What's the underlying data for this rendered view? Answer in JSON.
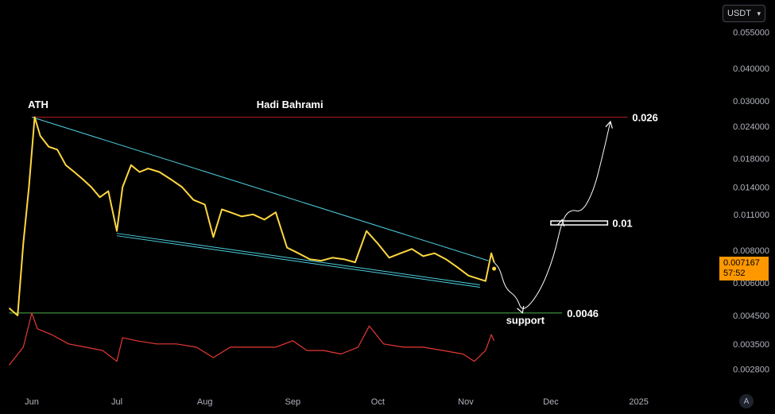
{
  "toolbar": {
    "currency": "USDT"
  },
  "price_tag": {
    "price": "0.007167",
    "countdown": "57:52"
  },
  "auto_button": {
    "label": "A"
  },
  "chart_data": {
    "type": "line",
    "yscale": "log",
    "y_ticks": [
      "0.055000",
      "0.040000",
      "0.030000",
      "0.024000",
      "0.018000",
      "0.014000",
      "0.011000",
      "0.008000",
      "0.006000",
      "0.004500",
      "0.003500",
      "0.002800"
    ],
    "x_ticks": [
      "Jun",
      "Jul",
      "Aug",
      "Sep",
      "Oct",
      "Nov",
      "Dec",
      "2025"
    ],
    "colors": {
      "price": "#ffd740",
      "indicator": "#e53935",
      "ath_line": "#b71c1c",
      "support_line": "#4caf50",
      "wedge": "#4dd0e1",
      "projection": "#ffffff",
      "price_tag": "#ff9800"
    },
    "series": [
      {
        "values_kind": "price",
        "x": [
          "May 24",
          "May 27",
          "May 29",
          "May 31",
          "Jun 2",
          "Jun 4",
          "Jun 7",
          "Jun 10",
          "Jun 13",
          "Jun 16",
          "Jun 19",
          "Jun 22",
          "Jun 25",
          "Jun 28",
          "Jul 1",
          "Jul 3",
          "Jul 6",
          "Jul 9",
          "Jul 12",
          "Jul 16",
          "Jul 20",
          "Jul 24",
          "Jul 28",
          "Aug 1",
          "Aug 4",
          "Aug 7",
          "Aug 10",
          "Aug 14",
          "Aug 18",
          "Aug 22",
          "Aug 26",
          "Aug 30",
          "Sep 3",
          "Sep 7",
          "Sep 11",
          "Sep 15",
          "Sep 19",
          "Sep 23",
          "Sep 27",
          "Oct 1",
          "Oct 5",
          "Oct 9",
          "Oct 13",
          "Oct 17",
          "Oct 21",
          "Oct 25",
          "Oct 29",
          "Nov 2",
          "Nov 6",
          "Nov 8",
          "Nov 10",
          "Nov 11"
        ],
        "y": [
          0.0048,
          0.0045,
          0.0085,
          0.014,
          0.026,
          0.022,
          0.02,
          0.0195,
          0.017,
          0.016,
          0.015,
          0.014,
          0.0128,
          0.0135,
          0.0095,
          0.014,
          0.017,
          0.016,
          0.0165,
          0.016,
          0.015,
          0.014,
          0.0125,
          0.012,
          0.009,
          0.0115,
          0.0112,
          0.0108,
          0.011,
          0.0105,
          0.0112,
          0.0082,
          0.0078,
          0.0074,
          0.0073,
          0.0075,
          0.0074,
          0.0072,
          0.0095,
          0.0085,
          0.0075,
          0.0078,
          0.0081,
          0.0076,
          0.0078,
          0.0074,
          0.0069,
          0.0064,
          0.0062,
          0.0061,
          0.0078,
          0.0072
        ]
      },
      {
        "values_kind": "indicator",
        "x": [
          "May 24",
          "May 29",
          "Jun 1",
          "Jun 3",
          "Jun 8",
          "Jun 14",
          "Jun 20",
          "Jun 26",
          "Jul 1",
          "Jul 3",
          "Jul 8",
          "Jul 15",
          "Jul 22",
          "Jul 29",
          "Aug 4",
          "Aug 10",
          "Aug 18",
          "Aug 26",
          "Sep 1",
          "Sep 6",
          "Sep 12",
          "Sep 18",
          "Sep 24",
          "Sep 28",
          "Oct 3",
          "Oct 10",
          "Oct 17",
          "Oct 24",
          "Oct 31",
          "Nov 4",
          "Nov 8",
          "Nov 10",
          "Nov 11"
        ],
        "y": [
          0.0029,
          0.0034,
          0.0046,
          0.004,
          0.0038,
          0.0035,
          0.0034,
          0.0033,
          0.003,
          0.0037,
          0.0036,
          0.0035,
          0.0035,
          0.0034,
          0.0031,
          0.0034,
          0.0034,
          0.0034,
          0.0036,
          0.0033,
          0.0033,
          0.0032,
          0.0034,
          0.0041,
          0.0035,
          0.0034,
          0.0034,
          0.0033,
          0.0032,
          0.003,
          0.0033,
          0.0038,
          0.0036
        ]
      }
    ],
    "levels": [
      {
        "label": "0.026",
        "value": 0.026,
        "x_from": "Jun 1",
        "x_to": "Dec 28",
        "color": "#b71c1c"
      },
      {
        "label": "0.01",
        "value": 0.0102,
        "x_from": "Dec 1",
        "x_to": "Dec 21",
        "color": "#ffffff"
      },
      {
        "label": "0.0046",
        "value": 0.0046,
        "x_from": "May 24",
        "x_to": "Dec 5",
        "color": "#4caf50"
      }
    ],
    "wedge": {
      "upper": [
        [
          "Jun 1",
          0.026
        ],
        [
          "Nov 9",
          0.0073
        ]
      ],
      "lower": [
        [
          "Jul 1",
          0.0093
        ],
        [
          "Nov 6",
          0.0059
        ]
      ]
    },
    "projection": [
      [
        "Nov 11",
        0.0072
      ],
      [
        "Nov 13",
        0.0068
      ],
      [
        "Nov 15",
        0.0057
      ],
      [
        "Nov 19",
        0.0053
      ],
      [
        "Nov 21",
        0.0046
      ],
      [
        "Nov 27",
        0.0055
      ],
      [
        "Dec 2",
        0.0075
      ],
      [
        "Dec 5",
        0.0105
      ],
      [
        "Dec 8",
        0.0115
      ],
      [
        "Dec 12",
        0.0112
      ],
      [
        "Dec 16",
        0.0135
      ],
      [
        "Dec 19",
        0.018
      ],
      [
        "Dec 22",
        0.025
      ]
    ],
    "annotations": [
      {
        "text": "ATH",
        "x": "Jun 3",
        "y": 0.029
      },
      {
        "text": "Hadi Bahrami",
        "x": "Aug 31",
        "y": 0.029
      },
      {
        "text": "support",
        "x": "Nov 22",
        "y": 0.0043
      }
    ]
  }
}
